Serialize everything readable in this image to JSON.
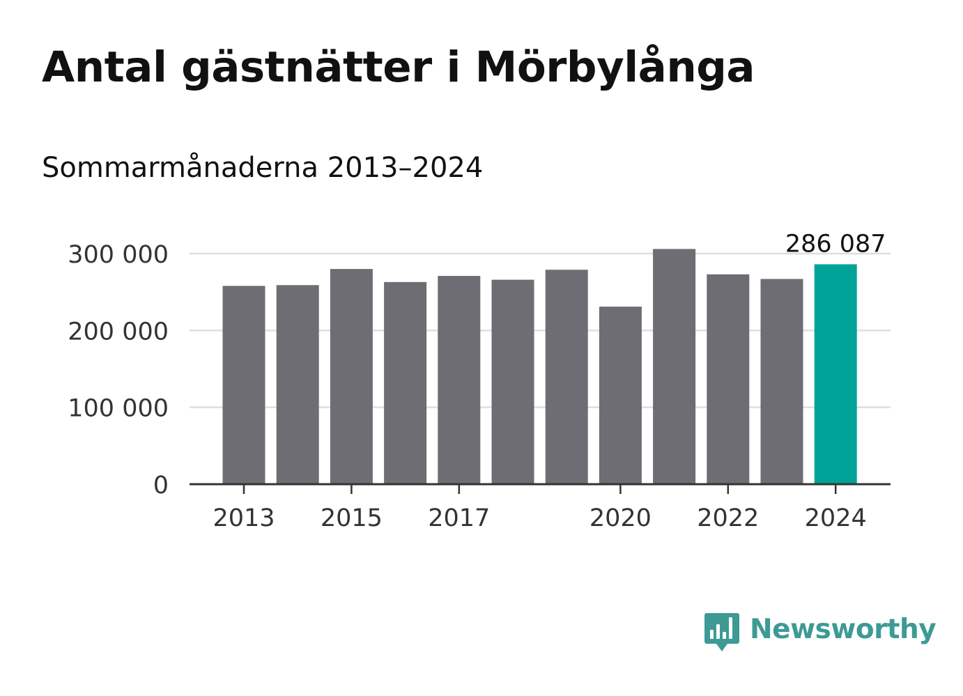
{
  "header": {
    "title": "Antal gästnätter i Mörbylånga",
    "subtitle": "Sommarmånaderna 2013–2024"
  },
  "brand": {
    "name": "Newsworthy",
    "icon": "bar-chart-speech-bubble-icon",
    "color": "#3d9a95"
  },
  "chart_data": {
    "type": "bar",
    "title": "Antal gästnätter i Mörbylånga",
    "subtitle": "Sommarmånaderna 2013–2024",
    "categories": [
      "2013",
      "2014",
      "2015",
      "2016",
      "2017",
      "2018",
      "2019",
      "2020",
      "2021",
      "2022",
      "2023",
      "2024"
    ],
    "values": [
      258000,
      259000,
      280000,
      263000,
      271000,
      266000,
      279000,
      231000,
      306000,
      273000,
      267000,
      286087
    ],
    "x_tick_labels": [
      "2013",
      "2015",
      "2017",
      "2020",
      "2022",
      "2024"
    ],
    "y_ticks": [
      0,
      100000,
      200000,
      300000
    ],
    "y_tick_labels": [
      "0",
      "100 000",
      "200 000",
      "300 000"
    ],
    "ylim": [
      0,
      300000
    ],
    "grid": true,
    "bar_color": "#6e6d73",
    "highlight_color": "#00a398",
    "highlight_category": "2024",
    "annotation": {
      "category": "2024",
      "label": "286 087"
    }
  }
}
